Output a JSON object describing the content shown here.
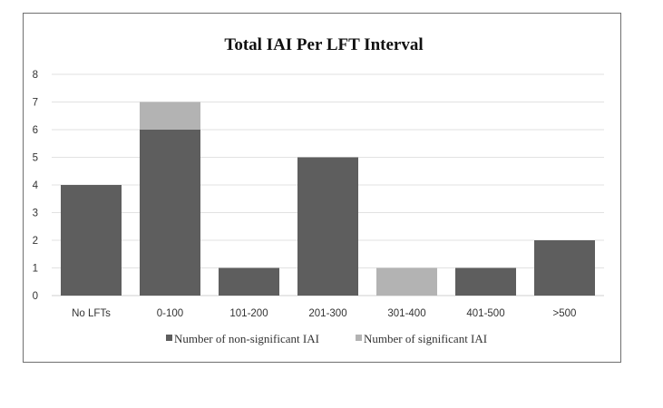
{
  "chart_data": {
    "type": "bar",
    "stacked": true,
    "title": "Total IAI Per LFT Interval",
    "xlabel": "",
    "ylabel": "",
    "categories": [
      "No LFTs",
      "0-100",
      "101-200",
      "201-300",
      "301-400",
      "401-500",
      ">500"
    ],
    "series": [
      {
        "name": "Number of non-significant IAI",
        "values": [
          4,
          6,
          1,
          5,
          0,
          1,
          2
        ],
        "color": "#5e5e5e"
      },
      {
        "name": "Number of significant IAI",
        "values": [
          0,
          1,
          0,
          0,
          1,
          0,
          0
        ],
        "color": "#b3b3b3"
      }
    ],
    "ylim": [
      0,
      8
    ],
    "yticks": [
      "0",
      "1",
      "2",
      "3",
      "4",
      "5",
      "6",
      "7",
      "8"
    ],
    "grid": true,
    "legend_position": "bottom"
  }
}
